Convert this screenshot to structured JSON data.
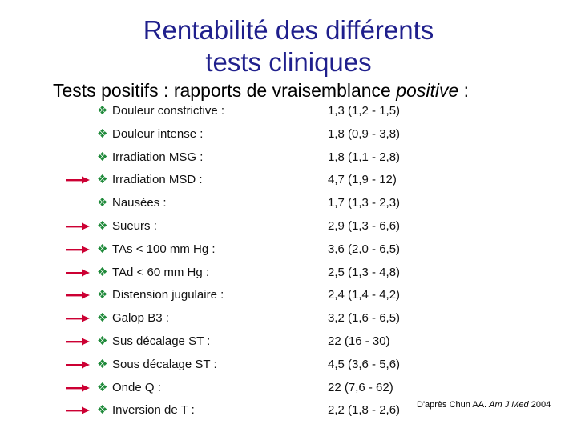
{
  "title": {
    "line1": "Rentabilité des différents",
    "line2": "tests cliniques"
  },
  "subtitle": {
    "main": "Tests positifs : rapports de vraisemblance ",
    "italic": "positive",
    "tail": " :"
  },
  "colors": {
    "title": "#1f1f8c",
    "bullet": "#1f8a3a",
    "arrow": "#cc0033"
  },
  "bullet_icon": "diamond-bullet-icon",
  "arrow_icon": "right-arrow-icon",
  "items": [
    {
      "label": "Douleur constrictive :",
      "value": "1,3 (1,2 - 1,5)",
      "arrow": false
    },
    {
      "label": "Douleur intense :",
      "value": "1,8 (0,9 - 3,8)",
      "arrow": false
    },
    {
      "label": "Irradiation MSG :",
      "value": "1,8 (1,1 - 2,8)",
      "arrow": false
    },
    {
      "label": "Irradiation MSD :",
      "value": "4,7 (1,9 - 12)",
      "arrow": true
    },
    {
      "label": "Nausées :",
      "value": "1,7 (1,3 - 2,3)",
      "arrow": false
    },
    {
      "label": "Sueurs :",
      "value": "2,9 (1,3 - 6,6)",
      "arrow": true
    },
    {
      "label": "TAs < 100 mm Hg :",
      "value": "3,6 (2,0 - 6,5)",
      "arrow": true
    },
    {
      "label": "TAd < 60 mm Hg :",
      "value": "2,5 (1,3 - 4,8)",
      "arrow": true
    },
    {
      "label": "Distension jugulaire :",
      "value": "2,4 (1,4 - 4,2)",
      "arrow": true
    },
    {
      "label": "Galop B3 :",
      "value": "3,2 (1,6 - 6,5)",
      "arrow": true
    },
    {
      "label": "Sus décalage ST :",
      "value": "22 (16 - 30)",
      "arrow": true
    },
    {
      "label": "Sous décalage ST :",
      "value": "4,5 (3,6 - 5,6)",
      "arrow": true
    },
    {
      "label": "Onde Q :",
      "value": "22 (7,6 - 62)",
      "arrow": true
    },
    {
      "label": "Inversion de T :",
      "value": "2,2 (1,8 - 2,6)",
      "arrow": true
    }
  ],
  "citation": {
    "prefix": "D'après Chun AA. ",
    "journal": "Am J Med",
    "year": " 2004"
  }
}
